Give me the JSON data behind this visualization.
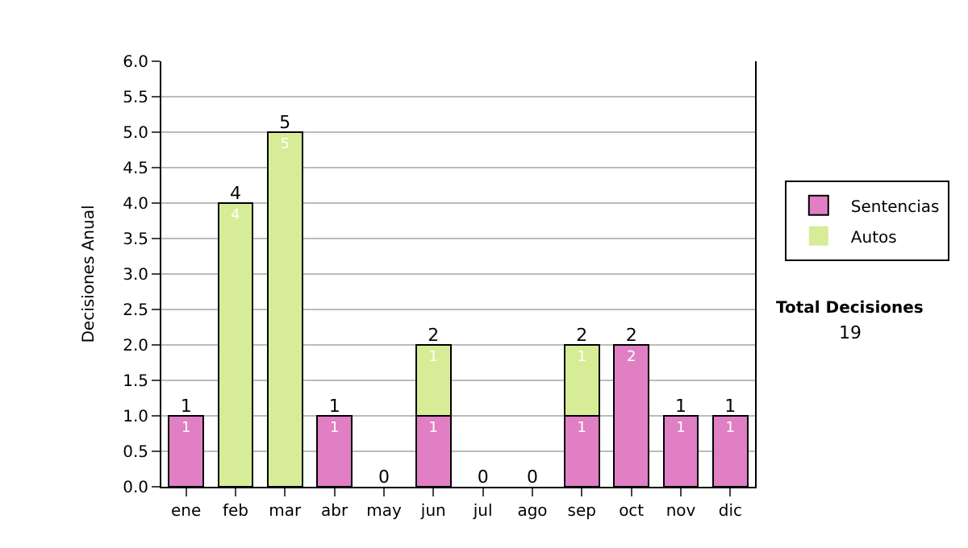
{
  "chart_data": {
    "type": "bar",
    "stacked": true,
    "ylabel": "Decisiones Anual",
    "categories": [
      "ene",
      "feb",
      "mar",
      "abr",
      "may",
      "jun",
      "jul",
      "ago",
      "sep",
      "oct",
      "nov",
      "dic"
    ],
    "series": [
      {
        "name": "Sentencias",
        "color": "#e07fc4",
        "values": [
          1,
          0,
          0,
          1,
          0,
          1,
          0,
          0,
          1,
          2,
          1,
          1
        ],
        "value_labels": [
          "1",
          null,
          null,
          "1",
          null,
          "1",
          null,
          null,
          "1",
          "2",
          "1",
          "1"
        ]
      },
      {
        "name": "Autos",
        "color": "#d7ec96",
        "values": [
          0,
          4,
          5,
          0,
          0,
          1,
          0,
          0,
          1,
          0,
          0,
          0
        ],
        "value_labels": [
          null,
          "4",
          "5",
          null,
          null,
          "1",
          null,
          null,
          "1",
          null,
          null,
          null
        ]
      }
    ],
    "totals": [
      "1",
      "4",
      "5",
      "1",
      "0",
      "2",
      "0",
      "0",
      "2",
      "2",
      "1",
      "1"
    ],
    "ylim": [
      0,
      6
    ],
    "yticks": [
      {
        "value": 0,
        "label": "0.0"
      },
      {
        "value": 0.5,
        "label": "0.5"
      },
      {
        "value": 1,
        "label": "1.0"
      },
      {
        "value": 1.5,
        "label": "1.5"
      },
      {
        "value": 2,
        "label": "2.0"
      },
      {
        "value": 2.5,
        "label": "2.5"
      },
      {
        "value": 3,
        "label": "3.0"
      },
      {
        "value": 3.5,
        "label": "3.5"
      },
      {
        "value": 4,
        "label": "4.0"
      },
      {
        "value": 4.5,
        "label": "4.5"
      },
      {
        "value": 5,
        "label": "5.0"
      },
      {
        "value": 5.5,
        "label": "5.5"
      },
      {
        "value": 6,
        "label": "6.0"
      }
    ],
    "grid": "y",
    "legend": "right",
    "annotations": [
      "Total Decisiones",
      "19"
    ]
  }
}
